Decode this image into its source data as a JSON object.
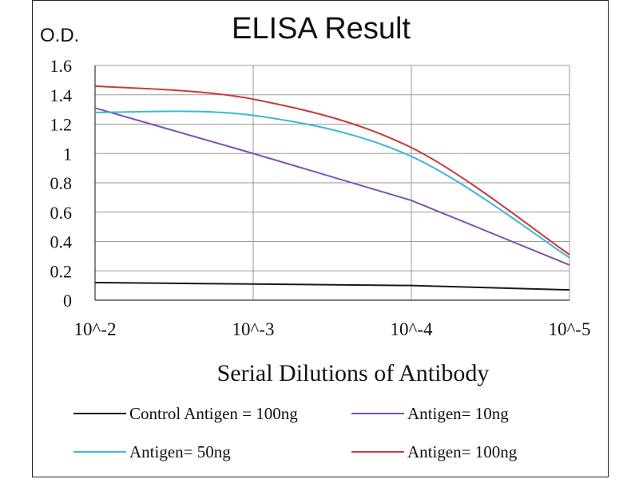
{
  "chart_data": {
    "type": "line",
    "title": "ELISA Result",
    "ylabel": "O.D.",
    "xlabel": "Serial Dilutions  of Antibody",
    "categories": [
      "10^-2",
      "10^-3",
      "10^-4",
      "10^-5"
    ],
    "ylim": [
      0,
      1.6
    ],
    "yticks": [
      0,
      0.2,
      0.4,
      0.6,
      0.8,
      1,
      1.2,
      1.4,
      1.6
    ],
    "ytick_labels": [
      "0",
      "0.2",
      "0.4",
      "0.6",
      "0.8",
      "1",
      "1.2",
      "1.4",
      "1.6"
    ],
    "grid": true,
    "legend_position": "bottom",
    "series": [
      {
        "name": "Control Antigen = 100ng",
        "color": "#1a1a1a",
        "values": [
          0.12,
          0.11,
          0.1,
          0.07
        ]
      },
      {
        "name": "Antigen= 10ng",
        "color": "#7b52b8",
        "values": [
          1.31,
          1.0,
          0.68,
          0.24
        ]
      },
      {
        "name": "Antigen= 50ng",
        "color": "#3db8d8",
        "values": [
          1.28,
          1.26,
          0.98,
          0.29
        ]
      },
      {
        "name": "Antigen= 100ng",
        "color": "#c83a3a",
        "values": [
          1.46,
          1.37,
          1.04,
          0.31
        ]
      }
    ]
  }
}
